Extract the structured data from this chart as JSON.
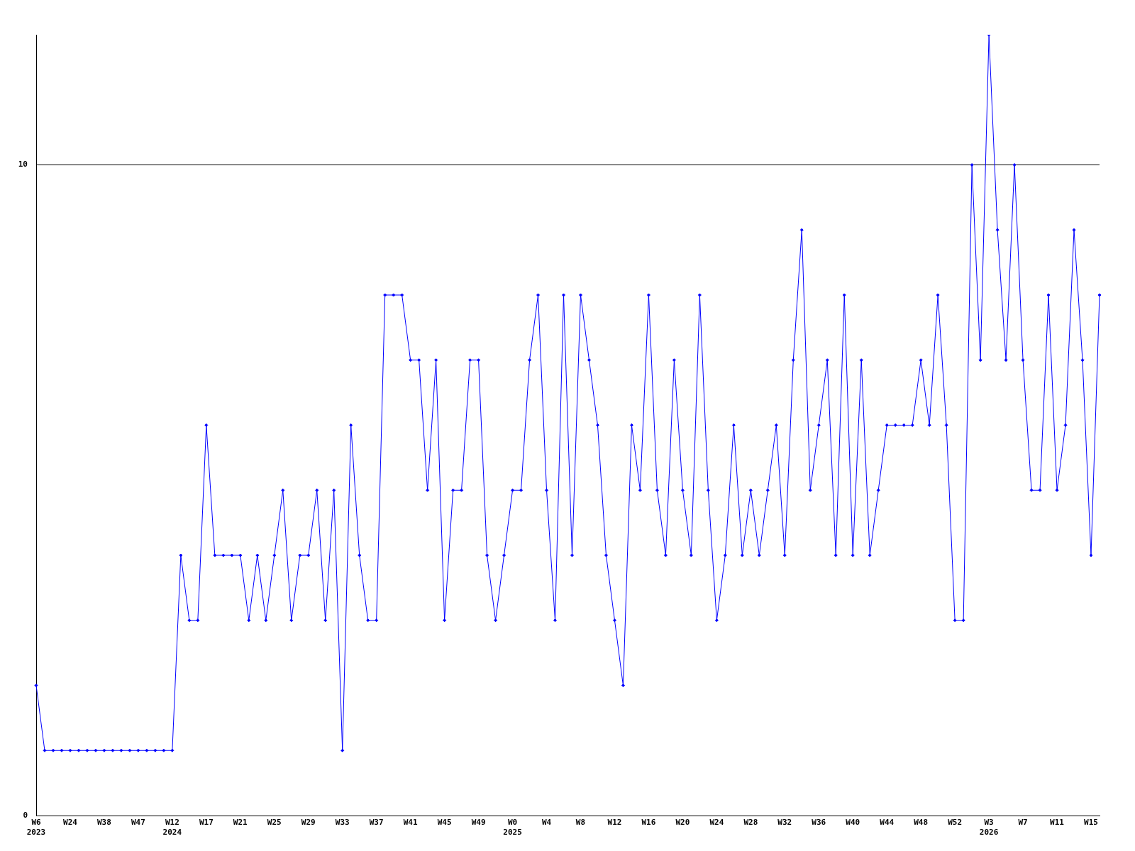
{
  "chart_data": {
    "type": "line",
    "categories": [
      "W6\n2023",
      null,
      null,
      null,
      "W24",
      null,
      null,
      null,
      "W38",
      null,
      null,
      null,
      "W47",
      null,
      null,
      null,
      "W12\n2024",
      null,
      null,
      null,
      "W17",
      null,
      null,
      null,
      "W21",
      null,
      null,
      null,
      "W25",
      null,
      null,
      null,
      "W29",
      null,
      null,
      null,
      "W33",
      null,
      null,
      null,
      "W37",
      null,
      null,
      null,
      "W41",
      null,
      null,
      null,
      "W45",
      null,
      null,
      null,
      "W49",
      null,
      null,
      null,
      "W0\n2025",
      null,
      null,
      null,
      "W4",
      null,
      null,
      null,
      "W8",
      null,
      null,
      null,
      "W12",
      null,
      null,
      null,
      "W16",
      null,
      null,
      null,
      "W20",
      null,
      null,
      null,
      "W24",
      null,
      null,
      null,
      "W28",
      null,
      null,
      null,
      "W32",
      null,
      null,
      null,
      "W36",
      null,
      null,
      null,
      "W40",
      null,
      null,
      null,
      "W44",
      null,
      null,
      null,
      "W48",
      null,
      null,
      null,
      "W52",
      null,
      null,
      null,
      "W3\n2026",
      null,
      null,
      null,
      "W7",
      null,
      null,
      null,
      "W11",
      null,
      null,
      null,
      "W15",
      null
    ],
    "series": [
      {
        "color": "#0000ff",
        "values": [
          2,
          1,
          1,
          1,
          1,
          1,
          1,
          1,
          1,
          1,
          1,
          1,
          1,
          1,
          1,
          1,
          1,
          4,
          3,
          3,
          6,
          4,
          4,
          4,
          4,
          3,
          4,
          3,
          4,
          5,
          3,
          4,
          4,
          5,
          3,
          5,
          1,
          6,
          4,
          3,
          3,
          8,
          8,
          8,
          7,
          7,
          5,
          7,
          3,
          5,
          5,
          7,
          7,
          4,
          3,
          4,
          5,
          5,
          7,
          8,
          5,
          3,
          8,
          4,
          8,
          7,
          6,
          4,
          3,
          2,
          6,
          5,
          8,
          5,
          4,
          7,
          5,
          4,
          8,
          5,
          3,
          4,
          6,
          4,
          5,
          4,
          5,
          6,
          4,
          7,
          9,
          5,
          6,
          7,
          4,
          8,
          4,
          7,
          4,
          5,
          6,
          6,
          6,
          6,
          7,
          6,
          8,
          6,
          3,
          3,
          10,
          7,
          12,
          9,
          7,
          10,
          7,
          5,
          5,
          8,
          5,
          6,
          9,
          7,
          4,
          8
        ]
      }
    ],
    "ylim": [
      0,
      12
    ],
    "yticks": [
      0,
      10
    ],
    "grid": "y",
    "legend": false,
    "marker": "diamond",
    "line_style": "solid"
  }
}
